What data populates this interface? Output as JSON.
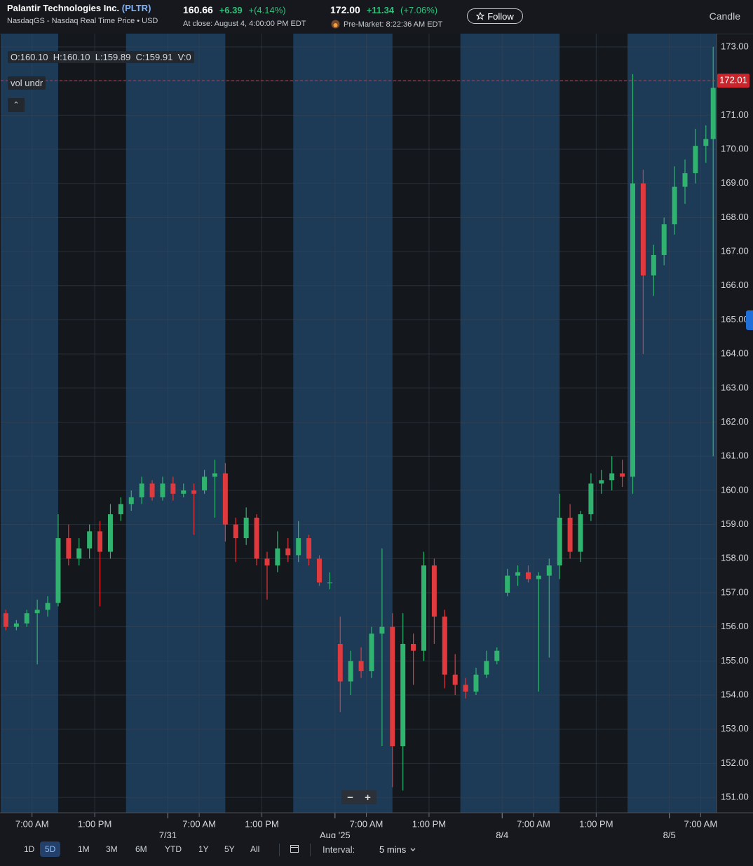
{
  "header": {
    "company": "Palantir Technologies Inc.",
    "ticker": "(PLTR)",
    "exchange": "NasdaqGS - Nasdaq Real Time Price • USD",
    "close_price": "160.66",
    "close_change": "+6.39",
    "close_change_pct": "+(4.14%)",
    "close_time": "At close: August 4, 4:00:00 PM EDT",
    "pre_price": "172.00",
    "pre_change": "+11.34",
    "pre_change_pct": "(+7.06%)",
    "pre_time": "Pre-Market: 8:22:36 AM EDT",
    "follow": "Follow",
    "chart_style": "Candle"
  },
  "legend": {
    "open": "O:160.10",
    "high": "H:160.10",
    "low": "L:159.89",
    "close": "C:159.91",
    "volume": "V:0",
    "indicator": "vol undr"
  },
  "chart_data": {
    "type": "candlestick",
    "grid": true,
    "up_color": "#2fb36f",
    "down_color": "#e0393e",
    "regular_color": "#14171c",
    "extended_color": "#1d3a57",
    "xlim": [
      0,
      68.52
    ],
    "ylim": [
      150.55,
      173.39
    ],
    "regular_sessions": [
      [
        5.5,
        12
      ],
      [
        21.5,
        28
      ],
      [
        37.5,
        44
      ],
      [
        53.5,
        60
      ]
    ],
    "xticks": [
      {
        "value": 3,
        "label": "7:00 AM"
      },
      {
        "value": 9,
        "label": "1:00 PM"
      },
      {
        "value": 19,
        "label": "7:00 AM"
      },
      {
        "value": 25,
        "label": "1:00 PM"
      },
      {
        "value": 35,
        "label": "7:00 AM"
      },
      {
        "value": 41,
        "label": "1:00 PM"
      },
      {
        "value": 51,
        "label": "7:00 AM"
      },
      {
        "value": 57,
        "label": "1:00 PM"
      },
      {
        "value": 67,
        "label": "7:00 AM"
      }
    ],
    "date_ticks": [
      {
        "value": 16,
        "label": "7/31"
      },
      {
        "value": 32,
        "label": "Aug '25"
      },
      {
        "value": 48,
        "label": "8/4"
      },
      {
        "value": 64,
        "label": "8/5"
      }
    ],
    "yticks": [
      {
        "value": 151,
        "label": "151.00"
      },
      {
        "value": 152,
        "label": "152.00"
      },
      {
        "value": 153,
        "label": "153.00"
      },
      {
        "value": 154,
        "label": "154.00"
      },
      {
        "value": 155,
        "label": "155.00"
      },
      {
        "value": 156,
        "label": "156.00"
      },
      {
        "value": 157,
        "label": "157.00"
      },
      {
        "value": 158,
        "label": "158.00"
      },
      {
        "value": 159,
        "label": "159.00"
      },
      {
        "value": 160,
        "label": "160.00"
      },
      {
        "value": 161,
        "label": "161.00"
      },
      {
        "value": 162,
        "label": "162.00"
      },
      {
        "value": 163,
        "label": "163.00"
      },
      {
        "value": 164,
        "label": "164.00"
      },
      {
        "value": 165,
        "label": "165.00"
      },
      {
        "value": 166,
        "label": "166.00"
      },
      {
        "value": 167,
        "label": "167.00"
      },
      {
        "value": 168,
        "label": "168.00"
      },
      {
        "value": 169,
        "label": "169.00"
      },
      {
        "value": 170,
        "label": "170.00"
      },
      {
        "value": 171,
        "label": "171.00"
      },
      {
        "value": 172,
        "label": "172.00"
      },
      {
        "value": 173,
        "label": "173.00"
      }
    ],
    "last_price": {
      "value": 172.01,
      "label": "172.01"
    },
    "x": [
      0.5,
      1.5,
      2.5,
      3.5,
      4.5,
      5.5,
      6.5,
      7.5,
      8.5,
      9.5,
      10.5,
      11.5,
      12.5,
      13.5,
      14.5,
      15.5,
      16.5,
      17.5,
      18.5,
      19.5,
      20.5,
      21.5,
      22.5,
      23.5,
      24.5,
      25.5,
      26.5,
      27.5,
      28.5,
      29.5,
      30.5,
      31.5,
      32.5,
      33.5,
      34.5,
      35.5,
      36.5,
      37.5,
      38.5,
      39.5,
      40.5,
      41.5,
      42.5,
      43.5,
      44.5,
      45.5,
      46.5,
      47.5,
      48.5,
      49.5,
      50.5,
      51.5,
      52.5,
      53.5,
      54.5,
      55.5,
      56.5,
      57.5,
      58.5,
      59.5,
      60.5,
      61.5,
      62.5,
      63.5,
      64.5,
      65.5,
      66.5,
      67.5,
      68.2
    ],
    "open": [
      156.4,
      156.0,
      156.1,
      156.4,
      156.5,
      156.7,
      158.6,
      158.0,
      158.3,
      158.8,
      158.2,
      159.3,
      159.6,
      159.8,
      160.2,
      159.8,
      160.2,
      159.9,
      160.0,
      160.0,
      160.4,
      160.5,
      159.0,
      158.6,
      159.2,
      158.0,
      157.8,
      158.3,
      158.1,
      158.6,
      158.0,
      157.3,
      155.5,
      154.4,
      155.0,
      154.7,
      155.8,
      156.0,
      152.5,
      155.5,
      155.3,
      157.8,
      156.3,
      154.6,
      154.3,
      154.1,
      154.6,
      155.0,
      157.0,
      157.5,
      157.6,
      157.4,
      157.5,
      157.8,
      159.2,
      158.2,
      159.3,
      160.2,
      160.3,
      160.5,
      160.4,
      169.0,
      166.3,
      166.9,
      167.8,
      168.9,
      169.3,
      170.1,
      170.3
    ],
    "high": [
      156.5,
      156.2,
      156.5,
      156.8,
      156.9,
      159.3,
      159.0,
      158.6,
      159.0,
      159.1,
      159.6,
      159.8,
      160.0,
      160.4,
      160.3,
      160.4,
      160.4,
      160.2,
      160.2,
      160.6,
      160.9,
      160.8,
      159.2,
      159.5,
      159.3,
      158.2,
      158.8,
      158.6,
      159.1,
      158.7,
      158.1,
      157.6,
      156.3,
      155.3,
      155.4,
      156.0,
      158.3,
      156.4,
      156.4,
      155.8,
      158.2,
      158.0,
      156.5,
      155.2,
      154.5,
      154.8,
      155.3,
      155.4,
      157.7,
      157.8,
      157.8,
      157.6,
      158.0,
      159.9,
      159.6,
      159.4,
      160.5,
      160.6,
      161.0,
      160.9,
      172.2,
      169.4,
      167.2,
      168.0,
      169.5,
      169.7,
      170.6,
      170.7,
      173.0
    ],
    "low": [
      155.9,
      155.9,
      156.0,
      154.9,
      156.3,
      156.6,
      157.8,
      157.8,
      158.0,
      156.6,
      158.0,
      159.1,
      159.4,
      159.6,
      159.7,
      159.7,
      159.7,
      159.8,
      158.7,
      159.9,
      159.2,
      158.5,
      157.9,
      158.4,
      157.8,
      156.8,
      157.6,
      157.9,
      157.9,
      157.8,
      157.2,
      157.1,
      153.5,
      154.0,
      154.5,
      154.5,
      152.5,
      151.3,
      151.2,
      154.3,
      155.0,
      155.5,
      154.2,
      154.0,
      153.9,
      154.0,
      154.5,
      154.9,
      156.9,
      157.2,
      157.3,
      154.1,
      155.1,
      157.4,
      158.0,
      157.9,
      159.1,
      159.9,
      160.0,
      160.1,
      159.9,
      164.0,
      165.7,
      166.6,
      167.5,
      168.4,
      169.0,
      169.6,
      161.0
    ],
    "close": [
      156.0,
      156.1,
      156.4,
      156.5,
      156.7,
      158.6,
      158.0,
      158.3,
      158.8,
      158.2,
      159.3,
      159.6,
      159.8,
      160.2,
      159.8,
      160.2,
      159.9,
      160.0,
      159.9,
      160.4,
      160.5,
      159.0,
      158.6,
      159.2,
      158.0,
      157.8,
      158.3,
      158.1,
      158.6,
      158.0,
      157.3,
      157.3,
      154.4,
      155.0,
      154.7,
      155.8,
      156.0,
      152.5,
      155.5,
      155.3,
      157.8,
      156.3,
      154.6,
      154.3,
      154.1,
      154.6,
      155.0,
      155.3,
      157.5,
      157.6,
      157.4,
      157.5,
      157.8,
      159.2,
      158.2,
      159.3,
      160.2,
      160.3,
      160.5,
      160.4,
      169.0,
      166.3,
      166.9,
      167.8,
      168.9,
      169.3,
      170.1,
      170.3,
      171.8
    ]
  },
  "toolbar": {
    "ranges": [
      "1D",
      "5D",
      "1M",
      "3M",
      "6M",
      "YTD",
      "1Y",
      "5Y",
      "All"
    ],
    "active_range": 1,
    "interval_label": "Interval:",
    "interval": "5 mins"
  }
}
